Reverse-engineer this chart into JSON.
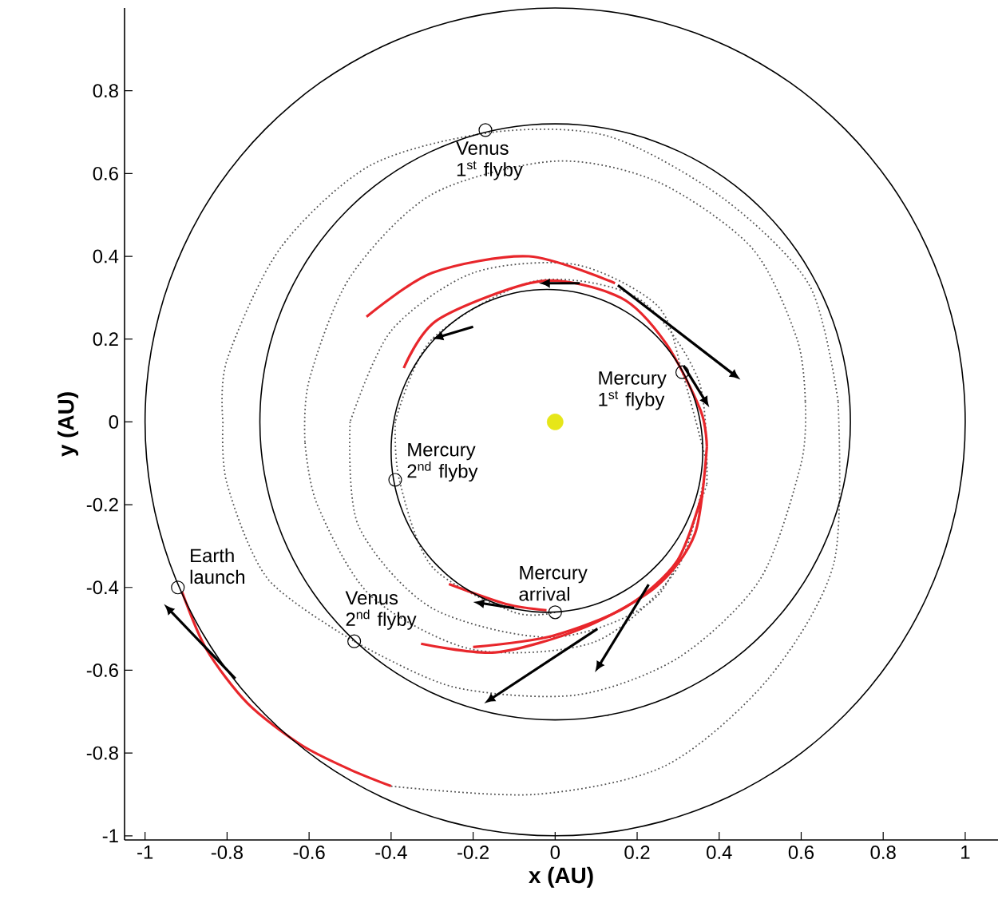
{
  "chart_data": {
    "type": "line",
    "xlabel": "x (AU)",
    "ylabel": "y (AU)",
    "xlim": [
      -1.05,
      1.08
    ],
    "ylim": [
      -1.01,
      1.0
    ],
    "xticks": [
      -1,
      -0.8,
      -0.6,
      -0.4,
      -0.2,
      0,
      0.2,
      0.4,
      0.6,
      0.8,
      1
    ],
    "yticks": [
      -1,
      -0.8,
      -0.6,
      -0.4,
      -0.2,
      0,
      0.2,
      0.4,
      0.6,
      0.8
    ],
    "series": [
      {
        "color": "#555555",
        "line_style": "dotted",
        "x": [
          -0.4,
          -0.05,
          0.27,
          0.52,
          0.68,
          0.69
        ],
        "values": [
          -0.88,
          -0.9,
          -0.83,
          -0.62,
          -0.34,
          0.05
        ]
      },
      {
        "color": "#555555",
        "line_style": "dotted",
        "x": [
          0.69,
          0.62,
          0.41,
          0.13,
          -0.15,
          -0.45,
          -0.67,
          -0.8,
          -0.81
        ],
        "values": [
          0.05,
          0.33,
          0.54,
          0.69,
          0.7,
          0.62,
          0.42,
          0.15,
          0
        ]
      },
      {
        "color": "#555555",
        "line_style": "dotted",
        "x": [
          -0.81,
          -0.8,
          -0.7,
          -0.49
        ],
        "values": [
          0,
          -0.15,
          -0.38,
          -0.53
        ]
      },
      {
        "color": "#555555",
        "line_style": "dotted",
        "x": [
          -0.49,
          -0.25,
          0.05,
          0.3,
          0.5,
          0.6,
          0.61
        ],
        "values": [
          -0.53,
          -0.64,
          -0.66,
          -0.57,
          -0.38,
          -0.1,
          0.05
        ]
      },
      {
        "color": "#555555",
        "line_style": "dotted",
        "x": [
          0.61,
          0.59,
          0.48,
          0.25,
          0,
          -0.3,
          -0.5,
          -0.6,
          -0.61
        ],
        "values": [
          0.05,
          0.2,
          0.42,
          0.58,
          0.63,
          0.55,
          0.35,
          0.1,
          -0.05
        ]
      },
      {
        "color": "#555555",
        "line_style": "dotted",
        "x": [
          -0.61,
          -0.58,
          -0.45,
          -0.2,
          0.1,
          0.3,
          0.37
        ],
        "values": [
          -0.05,
          -0.2,
          -0.42,
          -0.55,
          -0.53,
          -0.35,
          -0.1
        ]
      },
      {
        "color": "#555555",
        "line_style": "dotted",
        "x": [
          0.37,
          0.31,
          0.25,
          0.05,
          -0.2,
          -0.4,
          -0.5
        ],
        "values": [
          -0.1,
          0.12,
          0.28,
          0.38,
          0.36,
          0.22,
          0
        ]
      },
      {
        "color": "#555555",
        "line_style": "dotted",
        "x": [
          -0.5,
          -0.48,
          -0.3,
          0,
          0.25,
          0.37
        ],
        "values": [
          0,
          -0.25,
          -0.45,
          -0.52,
          -0.42,
          -0.15
        ]
      },
      {
        "color": "#555555",
        "line_style": "dotted",
        "x": [
          0.37,
          0.35,
          0.2,
          -0.05,
          -0.3,
          -0.39
        ],
        "values": [
          -0.15,
          0.1,
          0.3,
          0.34,
          0.2,
          0
        ]
      },
      {
        "color": "#555555",
        "line_style": "dotted",
        "x": [
          -0.39,
          -0.38,
          -0.3,
          -0.1,
          0
        ],
        "values": [
          0,
          -0.14,
          -0.35,
          -0.46,
          -0.46
        ]
      },
      {
        "color": "#e8262b",
        "line_style": "solid",
        "x": [
          -0.91,
          -0.85,
          -0.75,
          -0.62,
          -0.5,
          -0.4
        ],
        "values": [
          -0.41,
          -0.55,
          -0.68,
          -0.78,
          -0.84,
          -0.88
        ]
      },
      {
        "color": "#e8262b",
        "line_style": "solid",
        "x": [
          -0.46,
          -0.3,
          -0.064,
          0.146
        ],
        "values": [
          0.254,
          0.36,
          0.4,
          0.335
        ]
      },
      {
        "color": "#e8262b",
        "line_style": "solid",
        "x": [
          -0.369,
          -0.286,
          -0.035,
          0.16,
          0.27,
          0.355,
          0.37
        ],
        "values": [
          0.13,
          0.247,
          0.34,
          0.3,
          0.19,
          0.027,
          -0.06
        ]
      },
      {
        "color": "#e8262b",
        "line_style": "solid",
        "x": [
          0.37,
          0.341,
          0.244,
          0.063,
          -0.146,
          -0.327
        ],
        "values": [
          -0.06,
          -0.27,
          -0.4,
          -0.5,
          -0.557,
          -0.536
        ]
      },
      {
        "color": "#e8262b",
        "line_style": "solid",
        "x": [
          -0.2,
          -0.007,
          0.173,
          0.298,
          0.36
        ],
        "values": [
          -0.544,
          -0.517,
          -0.447,
          -0.335,
          -0.17
        ]
      },
      {
        "color": "#e8262b",
        "line_style": "solid",
        "x": [
          -0.259,
          -0.12,
          -0.021
        ],
        "values": [
          -0.392,
          -0.44,
          -0.455
        ]
      },
      {
        "type": "scatter",
        "color": "#000000",
        "marker": "circle",
        "x": [
          -0.92,
          -0.17,
          -0.49,
          0.31,
          -0.39,
          0
        ],
        "values": [
          -0.4,
          0.705,
          -0.53,
          0.12,
          -0.14,
          -0.46
        ]
      },
      {
        "type": "bubble",
        "color": "#e6e619",
        "x": [
          0
        ],
        "values": [
          0
        ],
        "sizes": [
          1
        ]
      }
    ],
    "annotations": [
      {
        "text": "Earth launch",
        "x": -0.92,
        "y": -0.4
      },
      {
        "text": "Venus 1$^{st}$ flyby",
        "x": -0.17,
        "y": 0.705
      },
      {
        "text": "Venus 2$^{nd}$ flyby",
        "x": -0.49,
        "y": -0.53
      },
      {
        "text": "Mercury 1$^{st}$ flyby",
        "x": 0.31,
        "y": 0.12
      },
      {
        "text": "Mercury 2$^{nd}$ flyby",
        "x": -0.39,
        "y": -0.14
      },
      {
        "text": "Mercury arrival",
        "x": 0,
        "y": -0.46
      }
    ]
  }
}
